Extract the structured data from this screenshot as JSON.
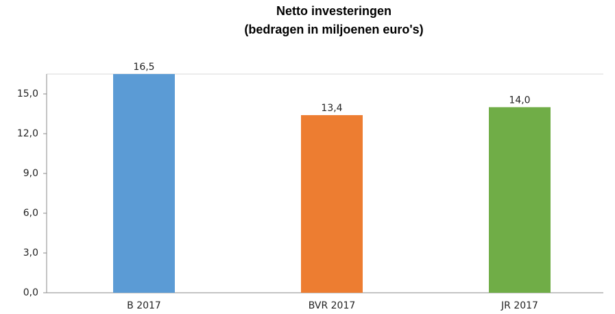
{
  "chart_data": {
    "type": "bar",
    "title": "Netto investeringen",
    "subtitle": "(bedragen in miljoenen euro's)",
    "categories": [
      "B 2017",
      "BVR 2017",
      "JR 2017"
    ],
    "values": [
      16.5,
      13.4,
      14.0
    ],
    "value_labels": [
      "16,5",
      "13,4",
      "14,0"
    ],
    "colors": [
      "#5b9bd5",
      "#ed7d31",
      "#70ad47"
    ],
    "ylim": [
      0,
      16.5
    ],
    "yticks": [
      {
        "value": 0,
        "label": "0,0"
      },
      {
        "value": 3,
        "label": "3,0"
      },
      {
        "value": 6,
        "label": "6,0"
      },
      {
        "value": 9,
        "label": "9,0"
      },
      {
        "value": 12,
        "label": "12,0"
      },
      {
        "value": 15,
        "label": "15,0"
      }
    ],
    "grid": false
  }
}
